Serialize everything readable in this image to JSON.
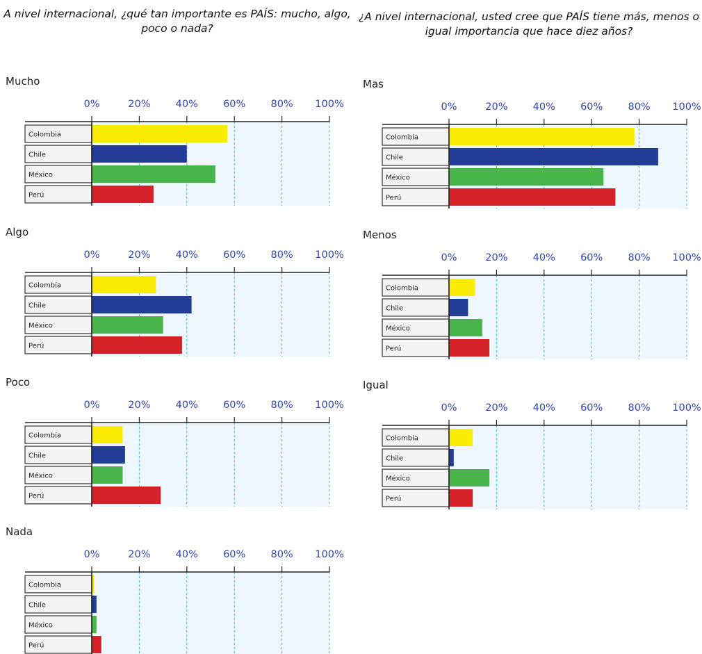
{
  "headings": {
    "left": "A nivel internacional, ¿qué tan importante es PAÍS: mucho, algo, poco o nada?",
    "right": "¿A nivel internacional, usted cree que PAÍS tiene más, menos o igual importancia que hace diez años?"
  },
  "colors": {
    "Colombia": "#fbec04",
    "Chile": "#233d96",
    "México": "#48b54a",
    "Perú": "#d62129",
    "plot_background": "#eef7fd",
    "gridline": "#33b4e6",
    "tick_label": "#3346a8"
  },
  "chart_data": [
    {
      "type": "bar",
      "orientation": "horizontal",
      "title": "Mucho",
      "categories": [
        "Colombia",
        "Chile",
        "México",
        "Perú"
      ],
      "values": [
        57,
        40,
        52,
        26
      ],
      "xlim": [
        0,
        100
      ],
      "x_ticks": [
        "0%",
        "20%",
        "40%",
        "60%",
        "80%",
        "100%"
      ],
      "grid": true
    },
    {
      "type": "bar",
      "orientation": "horizontal",
      "title": "Algo",
      "categories": [
        "Colombia",
        "Chile",
        "México",
        "Perú"
      ],
      "values": [
        27,
        42,
        30,
        38
      ],
      "xlim": [
        0,
        100
      ],
      "x_ticks": [
        "0%",
        "20%",
        "40%",
        "60%",
        "80%",
        "100%"
      ],
      "grid": true
    },
    {
      "type": "bar",
      "orientation": "horizontal",
      "title": "Poco",
      "categories": [
        "Colombia",
        "Chile",
        "México",
        "Perú"
      ],
      "values": [
        13,
        14,
        13,
        29
      ],
      "xlim": [
        0,
        100
      ],
      "x_ticks": [
        "0%",
        "20%",
        "40%",
        "60%",
        "80%",
        "100%"
      ],
      "grid": true
    },
    {
      "type": "bar",
      "orientation": "horizontal",
      "title": "Nada",
      "categories": [
        "Colombia",
        "Chile",
        "México",
        "Perú"
      ],
      "values": [
        1,
        2,
        2,
        4
      ],
      "xlim": [
        0,
        100
      ],
      "x_ticks": [
        "0%",
        "20%",
        "40%",
        "60%",
        "80%",
        "100%"
      ],
      "grid": true
    },
    {
      "type": "bar",
      "orientation": "horizontal",
      "title": "Mas",
      "categories": [
        "Colombia",
        "Chile",
        "México",
        "Perú"
      ],
      "values": [
        78,
        88,
        65,
        70
      ],
      "xlim": [
        0,
        100
      ],
      "x_ticks": [
        "0%",
        "20%",
        "40%",
        "60%",
        "80%",
        "100%"
      ],
      "grid": true
    },
    {
      "type": "bar",
      "orientation": "horizontal",
      "title": "Menos",
      "categories": [
        "Colombia",
        "Chile",
        "México",
        "Perú"
      ],
      "values": [
        11,
        8,
        14,
        17
      ],
      "xlim": [
        0,
        100
      ],
      "x_ticks": [
        "0%",
        "20%",
        "40%",
        "60%",
        "80%",
        "100%"
      ],
      "grid": true
    },
    {
      "type": "bar",
      "orientation": "horizontal",
      "title": "Igual",
      "categories": [
        "Colombia",
        "Chile",
        "México",
        "Perú"
      ],
      "values": [
        10,
        2,
        17,
        10
      ],
      "xlim": [
        0,
        100
      ],
      "x_ticks": [
        "0%",
        "20%",
        "40%",
        "60%",
        "80%",
        "100%"
      ],
      "grid": true
    }
  ]
}
